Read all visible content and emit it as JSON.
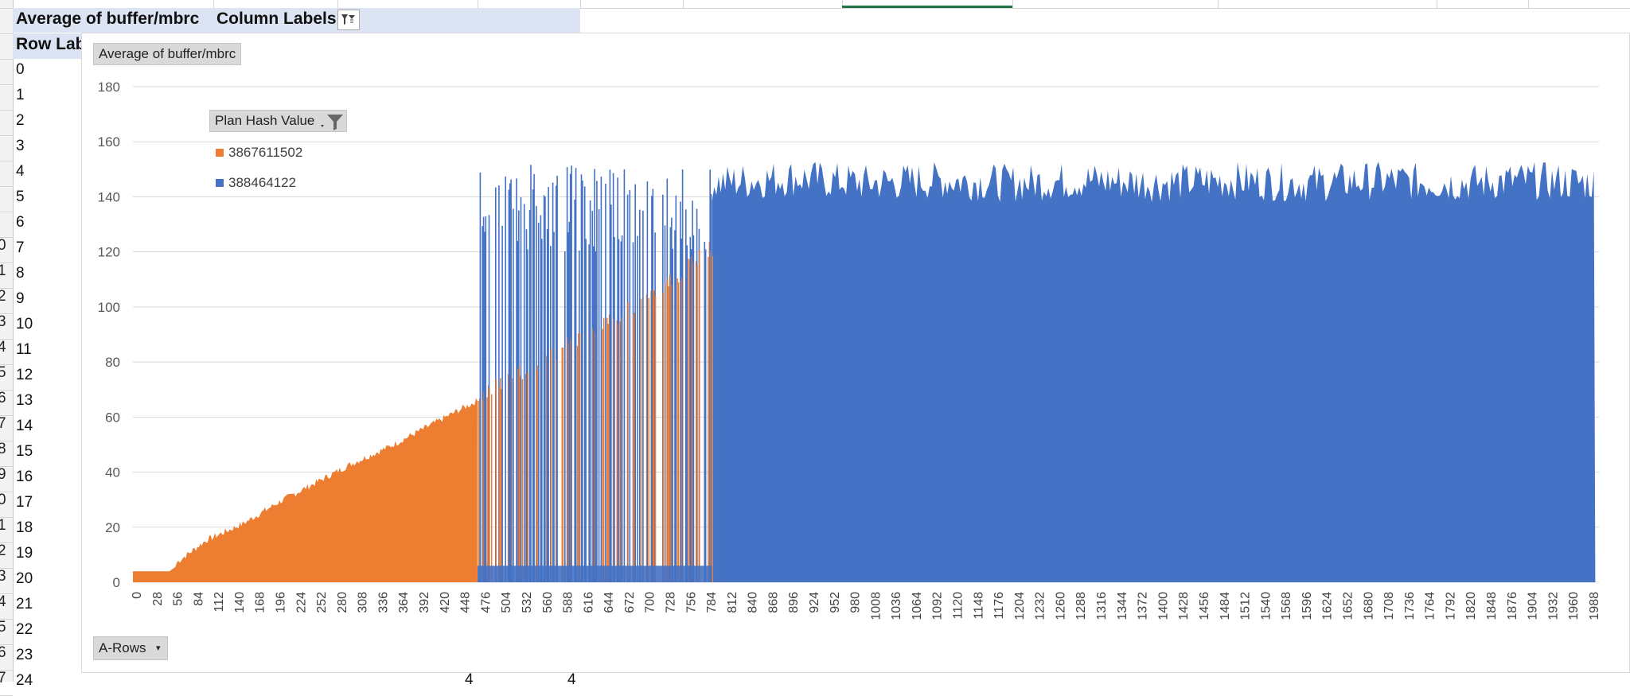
{
  "pivot": {
    "value_field": "Average of buffer/mbrc",
    "column_labels": "Column Labels",
    "row_labels": "Row Lab",
    "row_values": [
      "0",
      "1",
      "2",
      "3",
      "4",
      "5",
      "6",
      "7",
      "8",
      "9",
      "10",
      "11",
      "12",
      "13",
      "14",
      "15",
      "16",
      "17",
      "18",
      "19",
      "20",
      "21",
      "22",
      "23",
      "24"
    ],
    "row_header_fragments": [
      "0",
      "1",
      "2",
      "3",
      "4",
      "5",
      "6",
      "7",
      "8",
      "9",
      "0",
      "1",
      "2",
      "3",
      "4",
      "5",
      "6",
      "7"
    ],
    "bottom_values": [
      "4",
      "4"
    ]
  },
  "chart": {
    "value_field_button": "Average of buffer/mbrc",
    "legend_field_button": "Plan Hash Value",
    "axis_field_button": "A-Rows",
    "colors": {
      "orange": "#ed7d31",
      "blue": "#4472c4",
      "grid": "#d9d9d9",
      "axis_text": "#595959"
    }
  },
  "chart_data": {
    "type": "area",
    "title": "",
    "xlabel": "",
    "ylabel": "",
    "ylim": [
      0,
      180
    ],
    "yticks": [
      0,
      20,
      40,
      60,
      80,
      100,
      120,
      140,
      160,
      180
    ],
    "xlim": [
      0,
      2000
    ],
    "xticks": [
      "0",
      "28",
      "56",
      "84",
      "112",
      "140",
      "168",
      "196",
      "224",
      "252",
      "280",
      "308",
      "336",
      "364",
      "392",
      "420",
      "448",
      "476",
      "504",
      "532",
      "560",
      "588",
      "616",
      "644",
      "672",
      "700",
      "728",
      "756",
      "784",
      "812",
      "840",
      "868",
      "896",
      "924",
      "952",
      "980",
      "1008",
      "1036",
      "1064",
      "1092",
      "1120",
      "1148",
      "1176",
      "1204",
      "1232",
      "1260",
      "1288",
      "1316",
      "1344",
      "1372",
      "1400",
      "1428",
      "1456",
      "1484",
      "1512",
      "1540",
      "1568",
      "1596",
      "1624",
      "1652",
      "1680",
      "1708",
      "1736",
      "1764",
      "1792",
      "1820",
      "1848",
      "1876",
      "1904",
      "1932",
      "1960",
      "1988"
    ],
    "grid": true,
    "legend_position": "top-left",
    "series": [
      {
        "name": "3867611502",
        "color": "#ed7d31",
        "x": [
          0,
          50,
          100,
          150,
          200,
          250,
          300,
          350,
          400,
          450,
          480,
          520,
          560,
          600,
          650,
          700,
          750,
          780
        ],
        "values": [
          4,
          4,
          14,
          20,
          28,
          35,
          42,
          48,
          55,
          62,
          66,
          72,
          78,
          85,
          92,
          100,
          110,
          118
        ]
      },
      {
        "name": "388464122",
        "color": "#4472c4",
        "x": [
          470,
          500,
          550,
          600,
          650,
          700,
          750,
          790,
          850,
          900,
          1000,
          1100,
          1200,
          1300,
          1400,
          1500,
          1600,
          1700,
          1800,
          1900,
          1995
        ],
        "values": [
          145,
          150,
          148,
          150,
          149,
          148,
          147,
          146,
          147,
          148,
          146,
          147,
          146,
          147,
          146,
          147,
          146,
          147,
          146,
          147,
          146
        ]
      }
    ]
  }
}
